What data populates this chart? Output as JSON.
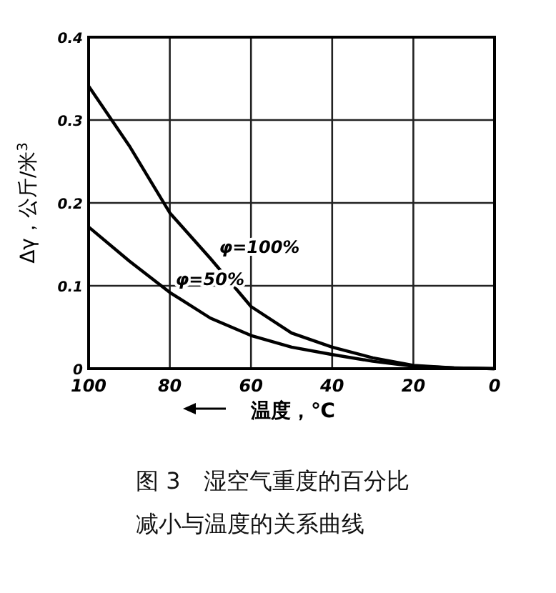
{
  "chart_data": {
    "type": "line",
    "xlabel": "温度，℃",
    "ylabel": "Δγ，公斤/米$^{3}$",
    "annotations": [
      "图 3　湿空气重度的百分比减小与温度的关系曲线"
    ],
    "x": [
      100,
      90,
      80,
      70,
      60,
      50,
      40,
      30,
      20,
      10,
      0
    ],
    "series": [
      {
        "name": "φ=100%",
        "color": "#000000",
        "values": [
          0.341,
          0.269,
          0.188,
          0.133,
          0.075,
          0.043,
          0.026,
          0.013,
          0.004,
          0.001,
          0
        ]
      },
      {
        "name": "φ=50%",
        "color": "#000000",
        "values": [
          0.171,
          0.13,
          0.092,
          0.061,
          0.04,
          0.026,
          0.017,
          0.009,
          0.003,
          0.001,
          0
        ]
      }
    ],
    "xlim": [
      100,
      0
    ],
    "ylim": [
      0,
      0.4
    ],
    "xticks": [
      100,
      80,
      60,
      40,
      20,
      0
    ],
    "yticks": [
      0,
      0.1,
      0.2,
      0.3,
      0.4
    ],
    "grid": true,
    "marker": "none",
    "line_style": "solid"
  }
}
